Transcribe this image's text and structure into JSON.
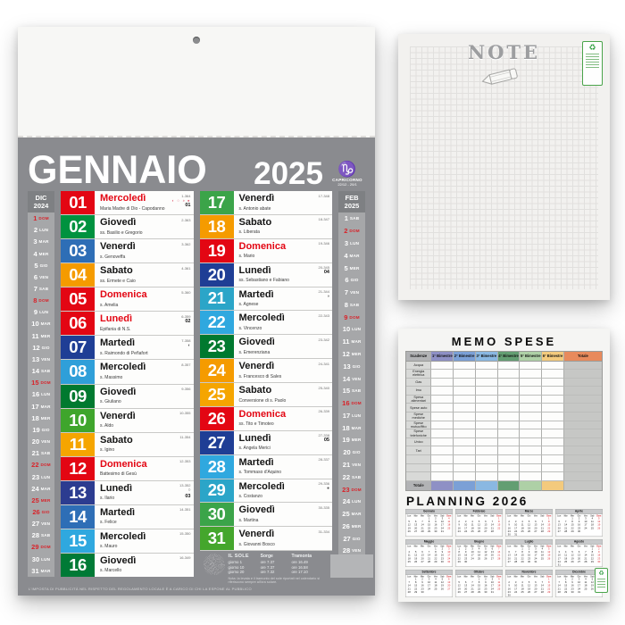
{
  "calendar": {
    "month": "GENNAIO",
    "year": "2025",
    "zodiac": {
      "symbol": "♑",
      "name": "CAPRICORNO",
      "dates": "22/12 - 20/1"
    },
    "prev": {
      "label": "DIC",
      "year": "2024",
      "days": [
        {
          "d": "1",
          "w": "DOM",
          "r": true
        },
        {
          "d": "2",
          "w": "LUN"
        },
        {
          "d": "3",
          "w": "MAR"
        },
        {
          "d": "4",
          "w": "MER"
        },
        {
          "d": "5",
          "w": "GIO"
        },
        {
          "d": "6",
          "w": "VEN"
        },
        {
          "d": "7",
          "w": "SAB"
        },
        {
          "d": "8",
          "w": "DOM",
          "r": true
        },
        {
          "d": "9",
          "w": "LUN"
        },
        {
          "d": "10",
          "w": "MAR"
        },
        {
          "d": "11",
          "w": "MER"
        },
        {
          "d": "12",
          "w": "GIO"
        },
        {
          "d": "13",
          "w": "VEN"
        },
        {
          "d": "14",
          "w": "SAB"
        },
        {
          "d": "15",
          "w": "DOM",
          "r": true
        },
        {
          "d": "16",
          "w": "LUN"
        },
        {
          "d": "17",
          "w": "MAR"
        },
        {
          "d": "18",
          "w": "MER"
        },
        {
          "d": "19",
          "w": "GIO"
        },
        {
          "d": "20",
          "w": "VEN"
        },
        {
          "d": "21",
          "w": "SAB"
        },
        {
          "d": "22",
          "w": "DOM",
          "r": true
        },
        {
          "d": "23",
          "w": "LUN"
        },
        {
          "d": "24",
          "w": "MAR"
        },
        {
          "d": "25",
          "w": "MER",
          "r": true
        },
        {
          "d": "26",
          "w": "GIO",
          "r": true
        },
        {
          "d": "27",
          "w": "VEN"
        },
        {
          "d": "28",
          "w": "SAB"
        },
        {
          "d": "29",
          "w": "DOM",
          "r": true
        },
        {
          "d": "30",
          "w": "LUN"
        },
        {
          "d": "31",
          "w": "MAR"
        }
      ]
    },
    "next": {
      "label": "FEB",
      "year": "2025",
      "days": [
        {
          "d": "1",
          "w": "SAB"
        },
        {
          "d": "2",
          "w": "DOM",
          "r": true
        },
        {
          "d": "3",
          "w": "LUN"
        },
        {
          "d": "4",
          "w": "MAR"
        },
        {
          "d": "5",
          "w": "MER"
        },
        {
          "d": "6",
          "w": "GIO"
        },
        {
          "d": "7",
          "w": "VEN"
        },
        {
          "d": "8",
          "w": "SAB"
        },
        {
          "d": "9",
          "w": "DOM",
          "r": true
        },
        {
          "d": "10",
          "w": "LUN"
        },
        {
          "d": "11",
          "w": "MAR"
        },
        {
          "d": "12",
          "w": "MER"
        },
        {
          "d": "13",
          "w": "GIO"
        },
        {
          "d": "14",
          "w": "VEN"
        },
        {
          "d": "15",
          "w": "SAB"
        },
        {
          "d": "16",
          "w": "DOM",
          "r": true
        },
        {
          "d": "17",
          "w": "LUN"
        },
        {
          "d": "18",
          "w": "MAR"
        },
        {
          "d": "19",
          "w": "MER"
        },
        {
          "d": "20",
          "w": "GIO"
        },
        {
          "d": "21",
          "w": "VEN"
        },
        {
          "d": "22",
          "w": "SAB"
        },
        {
          "d": "23",
          "w": "DOM",
          "r": true
        },
        {
          "d": "24",
          "w": "LUN"
        },
        {
          "d": "25",
          "w": "MAR"
        },
        {
          "d": "26",
          "w": "MER"
        },
        {
          "d": "27",
          "w": "GIO"
        },
        {
          "d": "28",
          "w": "VEN"
        }
      ]
    },
    "days": [
      {
        "num": "01",
        "name": "Mercoledì",
        "saint": "Maria Madre di Dio - Capodanno",
        "doy": "1-364",
        "color": "#e30613",
        "red": true,
        "moons": "◐ ○ ◑ ●",
        "week": "01"
      },
      {
        "num": "02",
        "name": "Giovedì",
        "saint": "ss. Basilio e Gregorio",
        "doy": "2-363",
        "color": "#00923f"
      },
      {
        "num": "03",
        "name": "Venerdì",
        "saint": "s. Genoveffa",
        "doy": "3-362",
        "color": "#2e6eb6"
      },
      {
        "num": "04",
        "name": "Sabato",
        "saint": "ss. Ermete e Caio",
        "doy": "4-361",
        "color": "#f59b00"
      },
      {
        "num": "05",
        "name": "Domenica",
        "saint": "s. Amelia",
        "doy": "5-360",
        "color": "#e30613",
        "red": true
      },
      {
        "num": "06",
        "name": "Lunedì",
        "saint": "Epifania di N.S.",
        "doy": "6-359",
        "color": "#e30613",
        "red": true,
        "week": "02"
      },
      {
        "num": "07",
        "name": "Martedì",
        "saint": "s. Raimondo di Peñafort",
        "doy": "7-358",
        "color": "#1f3e95",
        "moon": "◐"
      },
      {
        "num": "08",
        "name": "Mercoledì",
        "saint": "s. Massimo",
        "doy": "8-357",
        "color": "#2f9fd9"
      },
      {
        "num": "09",
        "name": "Giovedì",
        "saint": "s. Giuliano",
        "doy": "9-356",
        "color": "#00792f"
      },
      {
        "num": "10",
        "name": "Venerdì",
        "saint": "s. Aldo",
        "doy": "10-355",
        "color": "#3fa52c"
      },
      {
        "num": "11",
        "name": "Sabato",
        "saint": "s. Igino",
        "doy": "11-354",
        "color": "#f5a500"
      },
      {
        "num": "12",
        "name": "Domenica",
        "saint": "Battesimo di Gesù",
        "doy": "12-353",
        "color": "#e30613",
        "red": true
      },
      {
        "num": "13",
        "name": "Lunedì",
        "saint": "s. Ilario",
        "doy": "13-352",
        "color": "#2c3c90",
        "moon": "○",
        "week": "03"
      },
      {
        "num": "14",
        "name": "Martedì",
        "saint": "s. Felice",
        "doy": "14-351",
        "color": "#2e6eb6"
      },
      {
        "num": "15",
        "name": "Mercoledì",
        "saint": "s. Mauro",
        "doy": "15-350",
        "color": "#2fa8df"
      },
      {
        "num": "16",
        "name": "Giovedì",
        "saint": "s. Marcello",
        "doy": "16-349",
        "color": "#007a36"
      },
      {
        "num": "17",
        "name": "Venerdì",
        "saint": "s. Antonio abate",
        "doy": "17-348",
        "color": "#3ba449"
      },
      {
        "num": "18",
        "name": "Sabato",
        "saint": "s. Liberata",
        "doy": "18-347",
        "color": "#f59b00"
      },
      {
        "num": "19",
        "name": "Domenica",
        "saint": "s. Mario",
        "doy": "19-346",
        "color": "#e30613",
        "red": true
      },
      {
        "num": "20",
        "name": "Lunedì",
        "saint": "ss. Sebastiano e Fabiano",
        "doy": "20-345",
        "color": "#1f3e95",
        "week": "04"
      },
      {
        "num": "21",
        "name": "Martedì",
        "saint": "s. Agnese",
        "doy": "21-344",
        "color": "#2ba5c8",
        "moon": "◑"
      },
      {
        "num": "22",
        "name": "Mercoledì",
        "saint": "s. Vincenzo",
        "doy": "22-343",
        "color": "#2fa8df"
      },
      {
        "num": "23",
        "name": "Giovedì",
        "saint": "s. Emerenziana",
        "doy": "23-342",
        "color": "#00792f"
      },
      {
        "num": "24",
        "name": "Venerdì",
        "saint": "s. Francesco di Sales",
        "doy": "24-341",
        "color": "#f59b00"
      },
      {
        "num": "25",
        "name": "Sabato",
        "saint": "Conversione di s. Paolo",
        "doy": "25-340",
        "color": "#f5a500"
      },
      {
        "num": "26",
        "name": "Domenica",
        "saint": "ss. Tito e Timoteo",
        "doy": "26-339",
        "color": "#e30613",
        "red": true
      },
      {
        "num": "27",
        "name": "Lunedì",
        "saint": "s. Angela Merici",
        "doy": "27-338",
        "color": "#1f3e95",
        "week": "05"
      },
      {
        "num": "28",
        "name": "Martedì",
        "saint": "s. Tommaso d'Aquino",
        "doy": "28-337",
        "color": "#2fa8df"
      },
      {
        "num": "29",
        "name": "Mercoledì",
        "saint": "s. Costanzo",
        "doy": "29-336",
        "color": "#2ba5c8",
        "moon": "●"
      },
      {
        "num": "30",
        "name": "Giovedì",
        "saint": "s. Martina",
        "doy": "30-335",
        "color": "#3ba449"
      },
      {
        "num": "31",
        "name": "Venerdì",
        "saint": "s. Giovanni Bosco",
        "doy": "31-334",
        "color": "#44a62c"
      }
    ],
    "sun": {
      "title": "IL SOLE",
      "col_rise": "Sorge",
      "col_set": "Tramonta",
      "rows": [
        [
          "giorno 1",
          "ore 7.37",
          "ore 16.49"
        ],
        [
          "giorno 10",
          "ore 7.37",
          "ore 16.58"
        ],
        [
          "giorno 20",
          "ore 7.32",
          "ore 17.10"
        ]
      ],
      "note": "Nota: la levata e il tramonto del sole riportati nel calendario si riferiscono sempre all'ora solare."
    },
    "footer": "L'IMPOSTA DI PUBBLICITÀ NEL RISPETTO DEL REGOLAMENTO LOCALE È A CARICO DI CHI LA ESPONE AL PUBBLICO"
  },
  "note_pad": {
    "title": "NOTE"
  },
  "memo": {
    "title": "MEMO SPESE",
    "columns": [
      {
        "label": "Scadenze",
        "color": "#b2b3b5"
      },
      {
        "label": "1° Bimestre",
        "color": "#8e90c5"
      },
      {
        "label": "2° Bimestre",
        "color": "#7ba0d6"
      },
      {
        "label": "3° Bimestre",
        "color": "#8ab8e2"
      },
      {
        "label": "4° Bimestre",
        "color": "#639e72"
      },
      {
        "label": "5° Bimestre",
        "color": "#aed0a6"
      },
      {
        "label": "6° Bimestre",
        "color": "#f3ca7d"
      },
      {
        "label": "Totale",
        "color": "#e88a5c"
      }
    ],
    "rows": [
      "Acqua",
      "Energia elettrica",
      "Gas",
      "Imu",
      "Spesa alimentari",
      "Spese auto",
      "Spese mediche",
      "Spese mutuo/fitto",
      "Spese telefoniche",
      "Unico",
      "Tari",
      "",
      "",
      ""
    ],
    "total_label": "Totale"
  },
  "planning": {
    "title": "PLANNING 2026",
    "weekdays": [
      "Lun",
      "Mar",
      "Mer",
      "Gio",
      "Ven",
      "Sab",
      "Dom"
    ],
    "months": [
      {
        "name": "Gennaio",
        "start": 3,
        "days": 31
      },
      {
        "name": "Febbraio",
        "start": 6,
        "days": 28
      },
      {
        "name": "Marzo",
        "start": 6,
        "days": 31
      },
      {
        "name": "Aprile",
        "start": 2,
        "days": 30
      },
      {
        "name": "Maggio",
        "start": 4,
        "days": 31
      },
      {
        "name": "Giugno",
        "start": 0,
        "days": 30
      },
      {
        "name": "Luglio",
        "start": 2,
        "days": 31
      },
      {
        "name": "Agosto",
        "start": 5,
        "days": 31
      },
      {
        "name": "Settembre",
        "start": 1,
        "days": 30
      },
      {
        "name": "Ottobre",
        "start": 3,
        "days": 31
      },
      {
        "name": "Novembre",
        "start": 6,
        "days": 30
      },
      {
        "name": "Dicembre",
        "start": 1,
        "days": 31
      }
    ]
  }
}
